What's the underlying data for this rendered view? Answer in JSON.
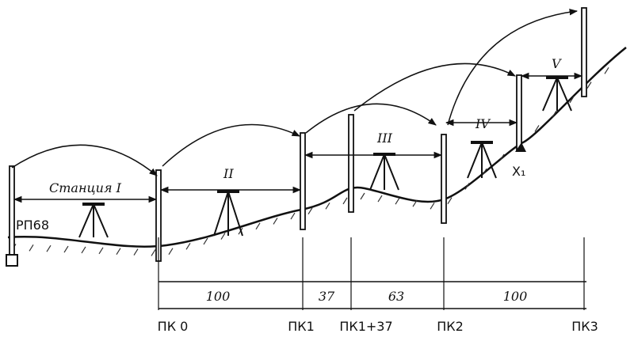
{
  "stations": [
    "Станция I",
    "II",
    "III",
    "IV",
    "V"
  ],
  "benchmark": "РП68",
  "point": "X₁",
  "distances": [
    "100",
    "37",
    "63",
    "100"
  ],
  "pickets": [
    "ПК 0",
    "ПК1",
    "ПК1+37",
    "ПК2",
    "ПК3"
  ]
}
